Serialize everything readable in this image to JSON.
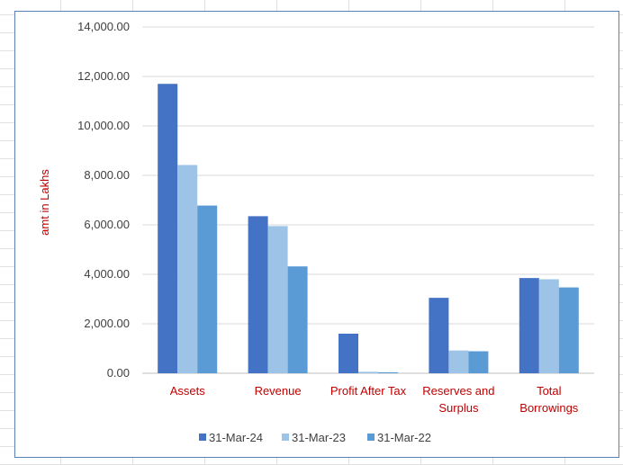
{
  "chart_data": {
    "type": "bar",
    "title": "",
    "xlabel": "",
    "ylabel": "amt in Lakhs",
    "ylim": [
      0,
      14000
    ],
    "yticks": [
      "0.00",
      "2,000.00",
      "4,000.00",
      "6,000.00",
      "8,000.00",
      "10,000.00",
      "12,000.00",
      "14,000.00"
    ],
    "grid": "horizontal",
    "legend_position": "bottom",
    "categories": [
      "Assets",
      "Revenue",
      "Profit After Tax",
      "Reserves and Surplus",
      "Total Borrowings"
    ],
    "category_lines": [
      [
        "Assets"
      ],
      [
        "Revenue"
      ],
      [
        "Profit After Tax"
      ],
      [
        "Reserves and",
        "Surplus"
      ],
      [
        "Total",
        "Borrowings"
      ]
    ],
    "series": [
      {
        "name": "31-Mar-24",
        "color": "#4472c4",
        "values": [
          11700,
          6350,
          1600,
          3050,
          3850
        ]
      },
      {
        "name": "31-Mar-23",
        "color": "#9dc3e6",
        "values": [
          8420,
          5950,
          60,
          920,
          3800
        ]
      },
      {
        "name": "31-Mar-22",
        "color": "#5b9bd5",
        "values": [
          6780,
          4320,
          40,
          890,
          3470
        ]
      }
    ]
  }
}
